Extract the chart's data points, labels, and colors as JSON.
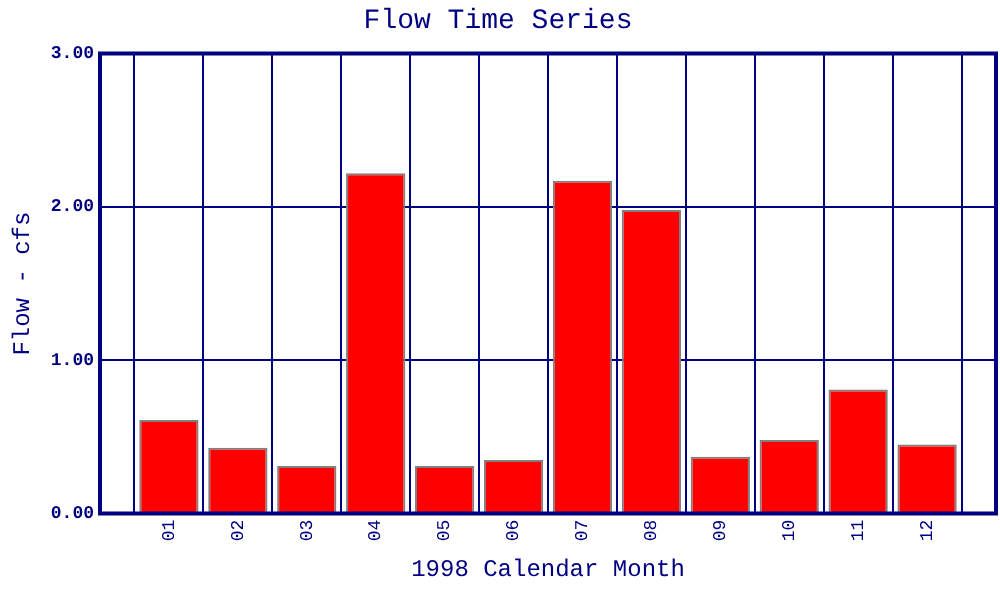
{
  "chart_data": {
    "type": "bar",
    "title": "Flow Time Series",
    "xlabel": "1998 Calendar Month",
    "ylabel": "Flow - cfs",
    "categories": [
      "01",
      "02",
      "03",
      "04",
      "05",
      "06",
      "07",
      "08",
      "09",
      "10",
      "11",
      "12"
    ],
    "values": [
      0.61,
      0.43,
      0.31,
      2.22,
      0.31,
      0.35,
      2.17,
      1.98,
      0.37,
      0.48,
      0.81,
      0.45
    ],
    "color": "#ff0000",
    "ylim": [
      0,
      3
    ],
    "yticks": [
      {
        "value": 0,
        "label": "0.00"
      },
      {
        "value": 1,
        "label": "1.00"
      },
      {
        "value": 2,
        "label": "2.00"
      },
      {
        "value": 3,
        "label": "3.00"
      }
    ],
    "grid": true,
    "legend": false
  }
}
